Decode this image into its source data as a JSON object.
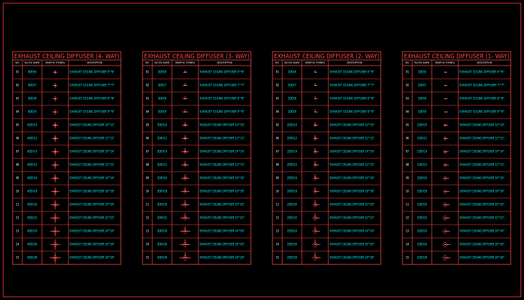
{
  "tables": [
    {
      "title": "EXHAUST CEILING DIFFUSER (4- WAY)",
      "headers": [
        "NO.",
        "BLOCK NAME",
        "GRAPHIC SYMBOL",
        "DESCRIPTION"
      ],
      "rows": [
        [
          "01",
          "4DEX6",
          "EXHAUST CEILING DIFFUSER 6\"*6\""
        ],
        [
          "02",
          "4DEX7",
          "EXHAUST CEILING DIFFUSER 7\"*7\""
        ],
        [
          "03",
          "4DEX8",
          "EXHAUST CEILING DIFFUSER 8\"*8\""
        ],
        [
          "04",
          "4DEX9",
          "EXHAUST CEILING DIFFUSER 9\"*9\""
        ],
        [
          "05",
          "4DEX10",
          "EXHAUST CEILING DIFFUSER 10\"*10\""
        ],
        [
          "06",
          "4DEX12",
          "EXHAUST CEILING DIFFUSER 12\"*12\""
        ],
        [
          "07",
          "4DEX14",
          "EXHAUST CEILING DIFFUSER 14\"*14\""
        ],
        [
          "08",
          "4DEX15",
          "EXHAUST CEILING DIFFUSER 15\"*15\""
        ],
        [
          "09",
          "4DEX16",
          "EXHAUST CEILING DIFFUSER 16\"*16\""
        ],
        [
          "10",
          "4DEX18",
          "EXHAUST CEILING DIFFUSER 18\"*18\""
        ],
        [
          "11",
          "4DEX20",
          "EXHAUST CEILING DIFFUSER 20\"*20\""
        ],
        [
          "12",
          "4DEX22",
          "EXHAUST CEILING DIFFUSER 22\"*22\""
        ],
        [
          "13",
          "4DEX24",
          "EXHAUST CEILING DIFFUSER 24\"*24\""
        ],
        [
          "14",
          "4DEX26",
          "EXHAUST CEILING DIFFUSER 26\"*26\""
        ],
        [
          "15",
          "4DEX28",
          "EXHAUST CEILING DIFFUSER 28\"*28\""
        ]
      ]
    },
    {
      "title": "EXHAUST CEILING DIFFUSER (3- WAY)",
      "headers": [
        "NO.",
        "BLOCK NAME",
        "GRAPHIC SYMBOL",
        "DESCRIPTION"
      ],
      "rows": [
        [
          "01",
          "3DEX6",
          "EXHAUST CEILING DIFFUSER 6\"*6\""
        ],
        [
          "02",
          "3DEX7",
          "EXHAUST CEILING DIFFUSER 7\"*7\""
        ],
        [
          "03",
          "3DEX8",
          "EXHAUST CEILING DIFFUSER 8\"*8\""
        ],
        [
          "04",
          "3DEX9",
          "EXHAUST CEILING DIFFUSER 9\"*9\""
        ],
        [
          "05",
          "3DEX10",
          "EXHAUST CEILING DIFFUSER 10\"*10\""
        ],
        [
          "06",
          "3DEX12",
          "EXHAUST CEILING DIFFUSER 12\"*12\""
        ],
        [
          "07",
          "3DEX14",
          "EXHAUST CEILING DIFFUSER 14\"*14\""
        ],
        [
          "08",
          "3DEX15",
          "EXHAUST CEILING DIFFUSER 15\"*15\""
        ],
        [
          "09",
          "3DEX16",
          "EXHAUST CEILING DIFFUSER 16\"*16\""
        ],
        [
          "10",
          "3DEX18",
          "EXHAUST CEILING DIFFUSER 18\"*18\""
        ],
        [
          "11",
          "3DEX20",
          "EXHAUST CEILING DIFFUSER 20\"*20\""
        ],
        [
          "12",
          "3DEX22",
          "EXHAUST CEILING DIFFUSER 22\"*22\""
        ],
        [
          "13",
          "3DEX24",
          "EXHAUST CEILING DIFFUSER 24\"*24\""
        ],
        [
          "14",
          "3DEX26",
          "EXHAUST CEILING DIFFUSER 26\"*26\""
        ],
        [
          "15",
          "3DEX28",
          "EXHAUST CEILING DIFFUSER 28\"*28\""
        ]
      ]
    },
    {
      "title": "EXHAUST CEILING DIFFUSER (2- WAY)",
      "headers": [
        "NO.",
        "BLOCK NAME",
        "GRAPHIC SYMBOL",
        "DESCRIPTION"
      ],
      "rows": [
        [
          "01",
          "2DEX6",
          "EXHAUST CEILING DIFFUSER 6\"*6\""
        ],
        [
          "02",
          "2DEX7",
          "EXHAUST CEILING DIFFUSER 7\"*7\""
        ],
        [
          "03",
          "2DEX8",
          "EXHAUST CEILING DIFFUSER 8\"*8\""
        ],
        [
          "04",
          "2DEX9",
          "EXHAUST CEILING DIFFUSER 9\"*9\""
        ],
        [
          "05",
          "2DEX10",
          "EXHAUST CEILING DIFFUSER 10\"*10\""
        ],
        [
          "06",
          "2DEX12",
          "EXHAUST CEILING DIFFUSER 12\"*12\""
        ],
        [
          "07",
          "2DEX14",
          "EXHAUST CEILING DIFFUSER 14\"*14\""
        ],
        [
          "08",
          "2DEX15",
          "EXHAUST CEILING DIFFUSER 15\"*15\""
        ],
        [
          "09",
          "2DEX16",
          "EXHAUST CEILING DIFFUSER 16\"*16\""
        ],
        [
          "10",
          "2DEX18",
          "EXHAUST CEILING DIFFUSER 18\"*18\""
        ],
        [
          "11",
          "2DEX20",
          "EXHAUST CEILING DIFFUSER 20\"*20\""
        ],
        [
          "12",
          "2DEX22",
          "EXHAUST CEILING DIFFUSER 22\"*22\""
        ],
        [
          "13",
          "2DEX24",
          "EXHAUST CEILING DIFFUSER 24\"*24\""
        ],
        [
          "14",
          "2DEX26",
          "EXHAUST CEILING DIFFUSER 26\"*26\""
        ],
        [
          "15",
          "2DEX28",
          "EXHAUST CEILING DIFFUSER 28\"*28\""
        ]
      ]
    },
    {
      "title": "EXHAUST CEILING DIFFUSER (1- WAY)",
      "headers": [
        "NO.",
        "BLOCK NAME",
        "GRAPHIC SYMBOL",
        "DESCRIPTION"
      ],
      "rows": [
        [
          "01",
          "1DEX6",
          "EXHAUST CEILING DIFFUSER 6\"*6\""
        ],
        [
          "02",
          "1DEX7",
          "EXHAUST CEILING DIFFUSER 7\"*7\""
        ],
        [
          "03",
          "1DEX8",
          "EXHAUST CEILING DIFFUSER 8\"*8\""
        ],
        [
          "04",
          "1DEX9",
          "EXHAUST CEILING DIFFUSER 9\"*9\""
        ],
        [
          "05",
          "1DEX10",
          "EXHAUST CEILING DIFFUSER 10\"*10\""
        ],
        [
          "06",
          "1DEX12",
          "EXHAUST CEILING DIFFUSER 12\"*12\""
        ],
        [
          "07",
          "1DEX14",
          "EXHAUST CEILING DIFFUSER 14\"*14\""
        ],
        [
          "08",
          "1DEX15",
          "EXHAUST CEILING DIFFUSER 15\"*15\""
        ],
        [
          "09",
          "1DEX16",
          "EXHAUST CEILING DIFFUSER 16\"*16\""
        ],
        [
          "10",
          "1DEX18",
          "EXHAUST CEILING DIFFUSER 18\"*18\""
        ],
        [
          "11",
          "1DEX20",
          "EXHAUST CEILING DIFFUSER 20\"*20\""
        ],
        [
          "12",
          "1DEX22",
          "EXHAUST CEILING DIFFUSER 22\"*22\""
        ],
        [
          "13",
          "1DEX24",
          "EXHAUST CEILING DIFFUSER 24\"*24\""
        ],
        [
          "14",
          "1DEX26",
          "EXHAUST CEILING DIFFUSER 26\"*26\""
        ],
        [
          "15",
          "1DEX28",
          "EXHAUST CEILING DIFFUSER 28\"*28\""
        ]
      ]
    }
  ]
}
